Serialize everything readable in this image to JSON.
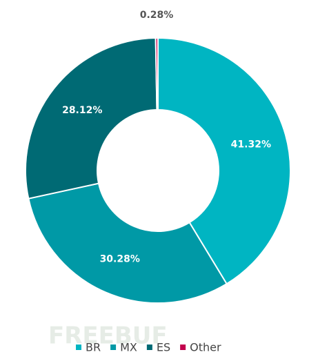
{
  "chart_data": {
    "type": "donut",
    "categories": [
      "BR",
      "MX",
      "ES",
      "Other"
    ],
    "values": [
      41.32,
      30.28,
      28.12,
      0.28
    ],
    "value_labels": [
      "41.32%",
      "30.28%",
      "28.12%",
      "0.28%"
    ],
    "colors": [
      "#00b5c2",
      "#0099a6",
      "#006a74",
      "#c2004d"
    ],
    "legend": "bottom"
  },
  "watermark": "FREEBUF"
}
